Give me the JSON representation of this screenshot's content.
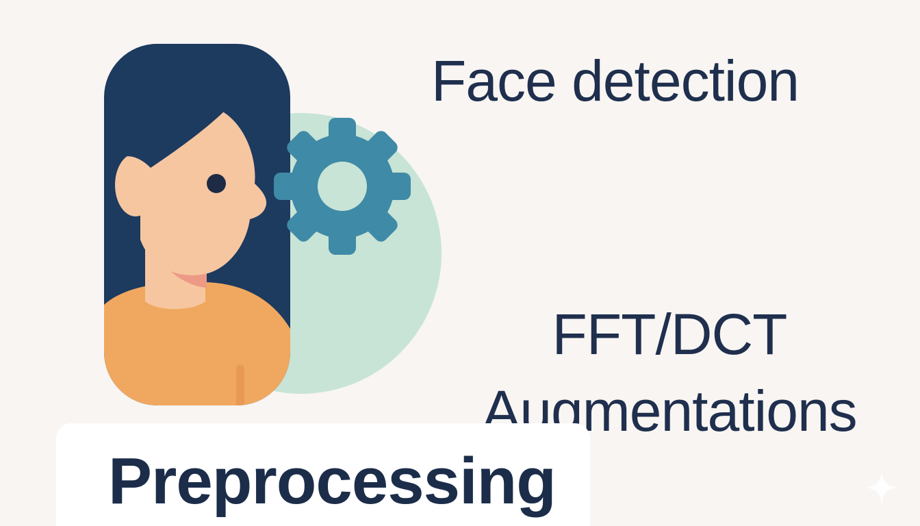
{
  "title": "Preprocessing",
  "steps": {
    "face_detection": "Face detection",
    "fft_dct": "FFT/DCT",
    "augmentations": "Augmentations"
  },
  "icons": {
    "person": "person-profile-icon",
    "gear": "gear-icon",
    "sparkle": "sparkle-icon"
  },
  "colors": {
    "background": "#f8f5f3",
    "text": "#1c2d4a",
    "hair": "#1d3a5f",
    "skin": "#f6c6a0",
    "shirt": "#f0a860",
    "circle": "#c8e4d6",
    "gear": "#3f8aa6"
  }
}
